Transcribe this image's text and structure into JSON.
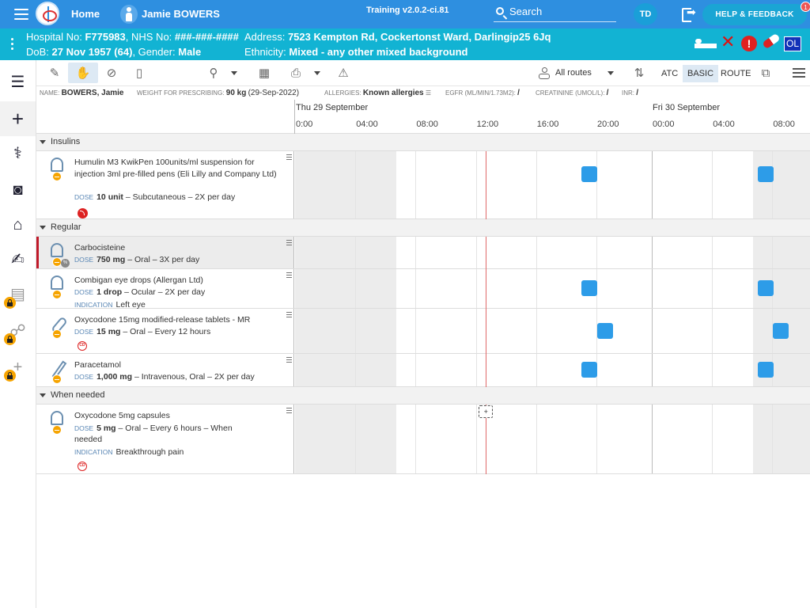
{
  "topbar": {
    "home_label": "Home",
    "patient_name": "Jamie BOWERS",
    "environment": "Training v2.0.2-ci.81",
    "search_placeholder": "Search",
    "user_initials": "TD",
    "help_label": "HELP & FEEDBACK",
    "notification_count": "1",
    "colors": {
      "bar": "#2e8fe0",
      "banner": "#12b3d3"
    }
  },
  "banner": {
    "hospital_label": "Hospital No:",
    "hospital_no": "F775983",
    "nhs_label": "NHS No:",
    "nhs_no": "###-###-####",
    "address_label": "Address:",
    "address": "7523 Kempton Rd, Cockertonst Ward, Darlingip25 6Jq",
    "dob_label": "DoB:",
    "dob": "27 Nov 1957 (64)",
    "gender_label": "Gender:",
    "gender": "Male",
    "ethnicity_label": "Ethnicity:",
    "ethnicity": "Mixed - any other mixed background",
    "ol_label": "OL"
  },
  "rail": {
    "items": [
      "list-icon",
      "plus-icon",
      "stethoscope-icon",
      "camera-icon",
      "house-icon",
      "signature-icon",
      "clipboard-icon",
      "walking-icon",
      "add-icon"
    ]
  },
  "toolbar": {
    "routes_label": "All routes",
    "view_modes": [
      "ATC",
      "BASIC",
      "ROUTE"
    ],
    "selected_view": "BASIC"
  },
  "info": {
    "name_label": "NAME:",
    "name": "BOWERS, Jamie",
    "weight_label": "WEIGHT FOR PRESCRIBING:",
    "weight": "90 kg",
    "weight_date": "(29-Sep-2022)",
    "allergies_label": "ALLERGIES:",
    "allergies": "Known allergies",
    "egfr_label": "EGFR (ML/MIN/1.73M2):",
    "egfr": "/",
    "creatinine_label": "CREATININE (UMOL/L):",
    "creatinine": "/",
    "inr_label": "INR:",
    "inr": "/"
  },
  "timeline": {
    "day1": "Thu 29 September",
    "day2": "Fri 30 September",
    "hours": [
      "0:00",
      "04:00",
      "08:00",
      "12:00",
      "16:00",
      "20:00",
      "00:00",
      "04:00",
      "08:00"
    ],
    "now_time": "12:40",
    "start_hour": 0,
    "hours_per_px_ref": "timeline_span_hours",
    "span_hours": 34.1
  },
  "sections": [
    {
      "title": "Insulins",
      "meds": [
        {
          "name": "Humulin M3 KwikPen 100units/ml suspension for injection 3ml pre-filled pens (Eli Lilly and Company Ltd)",
          "dose_label": "DOSE",
          "dose": "10 unit",
          "route_freq": "– Subcutaneous – 2X per day",
          "icon": "syringe-pen-icon",
          "badge": "red-alert-icon",
          "doses_at": [
            19.5,
            31.5
          ]
        }
      ]
    },
    {
      "title": "Regular",
      "meds": [
        {
          "name": "Carbocisteine",
          "dose_label": "DOSE",
          "dose": "750 mg",
          "route_freq": "– Oral – 3X per day",
          "icon": "medicine-bottle-icon",
          "badge": "percent-badge",
          "highlight": true,
          "doses_at": []
        },
        {
          "name": "Combigan eye drops (Allergan Ltd)",
          "dose_label": "DOSE",
          "dose": "1 drop",
          "route_freq": "– Ocular – 2X per day",
          "indication_label": "INDICATION",
          "indication": "Left eye",
          "icon": "medicine-bottle-icon",
          "doses_at": [
            19.5,
            31.5
          ]
        },
        {
          "name": "Oxycodone 15mg modified-release tablets - MR",
          "dose_label": "DOSE",
          "dose": "15 mg",
          "route_freq": "– Oral – Every 12 hours",
          "icon": "tablet-icon",
          "badge": "controlled-drug-badge",
          "cd_label": "CD",
          "doses_at": [
            20.5,
            32.5
          ]
        },
        {
          "name": "Paracetamol",
          "dose_label": "DOSE",
          "dose": "1,000 mg",
          "route_freq": "– Intravenous, Oral – 2X per day",
          "icon": "syringe-icon",
          "doses_at": [
            19.5,
            31.5
          ]
        }
      ]
    },
    {
      "title": "When needed",
      "meds": [
        {
          "name": "Oxycodone 5mg capsules",
          "dose_label": "DOSE",
          "dose": "5 mg",
          "route_freq": "– Oral – Every 6 hours – When needed",
          "indication_label": "INDICATION",
          "indication": "Breakthrough pain",
          "icon": "medicine-bottle-icon",
          "badge": "controlled-drug-badge",
          "cd_label": "CD",
          "doses_at": []
        }
      ]
    }
  ]
}
